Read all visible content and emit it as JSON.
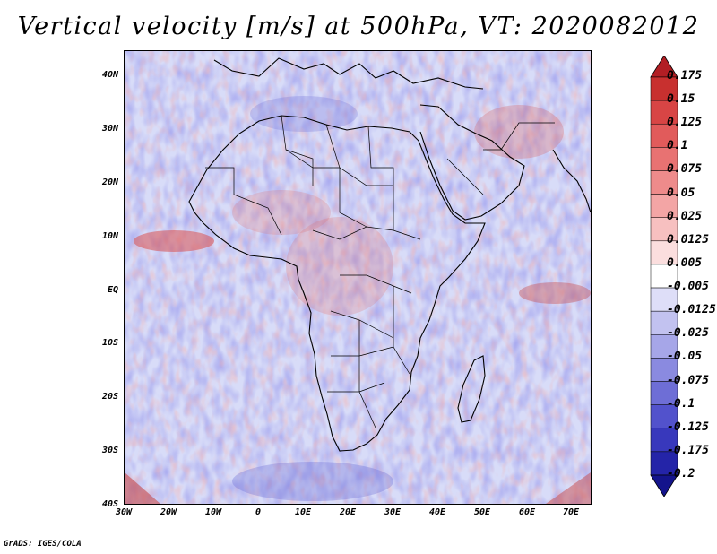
{
  "title": "Vertical velocity [m/s] at 500hPa, VT: 2020082012",
  "footer": "GrADS: IGES/COLA",
  "y_axis_labels": [
    "40N",
    "30N",
    "20N",
    "10N",
    "EQ",
    "10S",
    "20S",
    "30S",
    "40S"
  ],
  "x_axis_labels": [
    "30W",
    "20W",
    "10W",
    "0",
    "10E",
    "20E",
    "30E",
    "40E",
    "50E",
    "60E",
    "70E"
  ],
  "colorbar": {
    "labels": [
      "0.175",
      "0.15",
      "0.125",
      "0.1",
      "0.075",
      "0.05",
      "0.025",
      "0.0125",
      "0.005",
      "-0.005",
      "-0.0125",
      "-0.025",
      "-0.05",
      "-0.075",
      "-0.1",
      "-0.125",
      "-0.175",
      "-0.2"
    ],
    "colors": [
      "#b21e24",
      "#c8302f",
      "#d84545",
      "#e15b5b",
      "#e87272",
      "#ee8b8b",
      "#f3a5a5",
      "#f7c0c0",
      "#fbdede",
      "#ffffff",
      "#dedef8",
      "#c2c2f0",
      "#a6a6e8",
      "#8a8ae0",
      "#6e6ed6",
      "#5252cc",
      "#3838bc",
      "#2424a8",
      "#14148c"
    ]
  },
  "map": {
    "region": "Africa",
    "lon_range": [
      -30,
      75
    ],
    "lat_range": [
      -40,
      45
    ],
    "ocean_color": "#d8dcf8"
  }
}
